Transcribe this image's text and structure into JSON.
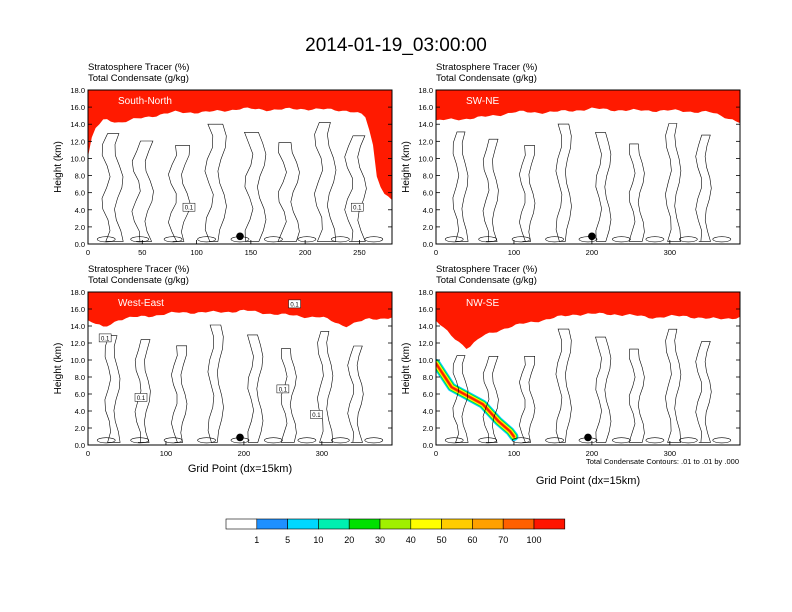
{
  "title": "2014-01-19_03:00:00",
  "field_label_1": "Stratosphere Tracer   (%)",
  "field_label_2": "Total Condensate   (g/kg)",
  "ylabel": "Height (km)",
  "xlabel": "Grid Point (dx=15km)",
  "contour_note": "Total Condensate Contours: .01 to .01 by .000",
  "colors": {
    "levels": [
      "#ffffff",
      "#1e90ff",
      "#00d0ff",
      "#00f0c0",
      "#00e040",
      "#50f000",
      "#b8f000",
      "#ffff00",
      "#ffcc00",
      "#ffa000",
      "#ff6000",
      "#ff1a00"
    ],
    "contour": "#000000"
  },
  "colorbar": {
    "ticks": [
      "1",
      "5",
      "10",
      "20",
      "30",
      "40",
      "50",
      "60",
      "70",
      "100"
    ],
    "fills": [
      "#ffffff",
      "#1e90ff",
      "#00d8ff",
      "#00f0b0",
      "#00e000",
      "#a0f000",
      "#ffff00",
      "#ffcc00",
      "#ffa000",
      "#ff6000",
      "#ff1400"
    ]
  },
  "chart_data": [
    {
      "type": "heatmap",
      "panel": "South-North",
      "xlim": [
        0,
        280
      ],
      "ylim": [
        0,
        18
      ],
      "xticks": [
        "0",
        "50",
        "100",
        "150",
        "200",
        "250"
      ],
      "xtick_values": [
        0,
        50,
        100,
        150,
        200,
        250
      ],
      "yticks": [
        "0.0",
        "2.0",
        "4.0",
        "6.0",
        "8.0",
        "10.0",
        "12.0",
        "14.0",
        "16.0",
        "18.0"
      ],
      "tracer_base_km": [
        [
          0,
          10.2
        ],
        [
          5,
          13.2
        ],
        [
          15,
          14.6
        ],
        [
          30,
          14.2
        ],
        [
          45,
          14.6
        ],
        [
          60,
          15.0
        ],
        [
          80,
          15.4
        ],
        [
          110,
          15.4
        ],
        [
          140,
          15.8
        ],
        [
          170,
          15.7
        ],
        [
          200,
          15.8
        ],
        [
          240,
          15.6
        ],
        [
          255,
          15.0
        ],
        [
          262,
          12.0
        ],
        [
          266,
          8.0
        ],
        [
          272,
          6.0
        ],
        [
          280,
          5.2
        ]
      ],
      "marker_x": 140,
      "contour_labels": [
        {
          "x": 93,
          "y": 4.3,
          "text": "0.1"
        },
        {
          "x": 248,
          "y": 4.3,
          "text": "0.1"
        }
      ]
    },
    {
      "type": "heatmap",
      "panel": "SW-NE",
      "xlim": [
        0,
        390
      ],
      "ylim": [
        0,
        18
      ],
      "xticks": [
        "0",
        "100",
        "200",
        "300"
      ],
      "xtick_values": [
        0,
        100,
        200,
        300
      ],
      "yticks": [
        "0.0",
        "2.0",
        "4.0",
        "6.0",
        "8.0",
        "10.0",
        "12.0",
        "14.0",
        "16.0",
        "18.0"
      ],
      "tracer_base_km": [
        [
          0,
          14.4
        ],
        [
          30,
          14.6
        ],
        [
          60,
          14.8
        ],
        [
          100,
          15.4
        ],
        [
          150,
          15.4
        ],
        [
          200,
          15.8
        ],
        [
          250,
          15.6
        ],
        [
          300,
          15.6
        ],
        [
          350,
          15.4
        ],
        [
          380,
          14.6
        ],
        [
          390,
          14.2
        ]
      ],
      "marker_x": 200,
      "contour_labels": []
    },
    {
      "type": "heatmap",
      "panel": "West-East",
      "xlim": [
        0,
        390
      ],
      "ylim": [
        0,
        18
      ],
      "xticks": [
        "0",
        "100",
        "200",
        "300"
      ],
      "xtick_values": [
        0,
        100,
        200,
        300
      ],
      "yticks": [
        "0.0",
        "2.0",
        "4.0",
        "6.0",
        "8.0",
        "10.0",
        "12.0",
        "14.0",
        "16.0",
        "18.0"
      ],
      "tracer_base_km": [
        [
          0,
          14.6
        ],
        [
          20,
          13.8
        ],
        [
          40,
          14.8
        ],
        [
          80,
          15.2
        ],
        [
          120,
          15.6
        ],
        [
          160,
          15.6
        ],
        [
          200,
          15.8
        ],
        [
          240,
          15.4
        ],
        [
          265,
          15.2
        ],
        [
          300,
          15.0
        ],
        [
          330,
          14.0
        ],
        [
          360,
          14.8
        ],
        [
          390,
          15.0
        ]
      ],
      "marker_x": 195,
      "contour_labels": [
        {
          "x": 22,
          "y": 12.6,
          "text": "0.1"
        },
        {
          "x": 68,
          "y": 5.6,
          "text": "0.1"
        },
        {
          "x": 250,
          "y": 6.6,
          "text": "0.1"
        },
        {
          "x": 293,
          "y": 3.6,
          "text": "0.1"
        },
        {
          "x": 265,
          "y": 16.6,
          "text": "0.1"
        }
      ]
    },
    {
      "type": "heatmap",
      "panel": "NW-SE",
      "xlim": [
        0,
        390
      ],
      "ylim": [
        0,
        18
      ],
      "xticks": [
        "0",
        "100",
        "200",
        "300"
      ],
      "xtick_values": [
        0,
        100,
        200,
        300
      ],
      "yticks": [
        "0.0",
        "2.0",
        "4.0",
        "6.0",
        "8.0",
        "10.0",
        "12.0",
        "14.0",
        "16.0",
        "18.0"
      ],
      "tracer_base_km": [
        [
          0,
          14.6
        ],
        [
          20,
          12.8
        ],
        [
          40,
          11.4
        ],
        [
          60,
          12.8
        ],
        [
          90,
          13.8
        ],
        [
          130,
          14.6
        ],
        [
          180,
          15.4
        ],
        [
          230,
          15.4
        ],
        [
          280,
          15.0
        ],
        [
          320,
          15.2
        ],
        [
          350,
          14.8
        ],
        [
          390,
          15.0
        ]
      ],
      "intrusion_km": [
        [
          0,
          9.6
        ],
        [
          20,
          6.8
        ],
        [
          40,
          5.8
        ],
        [
          60,
          4.8
        ],
        [
          80,
          2.8
        ],
        [
          95,
          1.6
        ],
        [
          100,
          1.0
        ]
      ],
      "marker_x": 195,
      "contour_labels": []
    }
  ]
}
